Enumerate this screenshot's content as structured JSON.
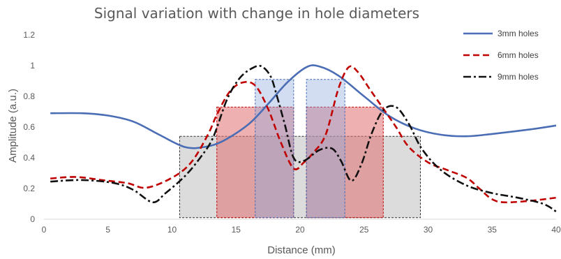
{
  "chart_data": {
    "type": "line",
    "title": "Signal variation with change in hole diameters",
    "xlabel": "Distance (mm)",
    "ylabel": "Amplitude (a.u.)",
    "xlim": [
      0,
      40
    ],
    "ylim": [
      0,
      1.2
    ],
    "x_ticks": [
      0,
      5,
      10,
      15,
      20,
      25,
      30,
      35,
      40
    ],
    "y_ticks": [
      0,
      0.2,
      0.4,
      0.6,
      0.8,
      1,
      1.2
    ],
    "y_tick_labels": [
      "0",
      "0.2",
      "0.4",
      "0.6",
      "0.8",
      "1",
      "1.2"
    ],
    "grid": false,
    "legend_position": "top-right",
    "series": [
      {
        "name": "3mm holes",
        "color": "#4a6db5",
        "style": "solid",
        "points": [
          [
            0.5,
            0.69
          ],
          [
            3,
            0.69
          ],
          [
            5,
            0.675
          ],
          [
            7,
            0.635
          ],
          [
            9,
            0.55
          ],
          [
            11,
            0.47
          ],
          [
            12.5,
            0.47
          ],
          [
            14,
            0.51
          ],
          [
            16,
            0.62
          ],
          [
            17.5,
            0.75
          ],
          [
            19,
            0.89
          ],
          [
            20.5,
            0.99
          ],
          [
            21.5,
            0.995
          ],
          [
            23,
            0.935
          ],
          [
            25,
            0.8
          ],
          [
            27,
            0.67
          ],
          [
            29,
            0.59
          ],
          [
            31,
            0.55
          ],
          [
            33,
            0.54
          ],
          [
            35,
            0.555
          ],
          [
            38,
            0.585
          ],
          [
            40,
            0.61
          ]
        ]
      },
      {
        "name": "6mm holes",
        "color": "#c00000",
        "style": "dashed",
        "points": [
          [
            0.5,
            0.265
          ],
          [
            2.5,
            0.275
          ],
          [
            4.5,
            0.255
          ],
          [
            6.5,
            0.235
          ],
          [
            8,
            0.205
          ],
          [
            10,
            0.27
          ],
          [
            11.5,
            0.37
          ],
          [
            12.8,
            0.55
          ],
          [
            13.5,
            0.68
          ],
          [
            14.5,
            0.83
          ],
          [
            15.5,
            0.89
          ],
          [
            16.5,
            0.87
          ],
          [
            17.5,
            0.72
          ],
          [
            18.5,
            0.5
          ],
          [
            19.5,
            0.33
          ],
          [
            20.3,
            0.37
          ],
          [
            21,
            0.43
          ],
          [
            22,
            0.55
          ],
          [
            23,
            0.85
          ],
          [
            23.8,
            0.99
          ],
          [
            24.5,
            0.96
          ],
          [
            25.5,
            0.84
          ],
          [
            26.5,
            0.72
          ],
          [
            27.5,
            0.6
          ],
          [
            28.5,
            0.47
          ],
          [
            30,
            0.37
          ],
          [
            31.5,
            0.32
          ],
          [
            33,
            0.27
          ],
          [
            34,
            0.2
          ],
          [
            35,
            0.13
          ],
          [
            36,
            0.11
          ],
          [
            38,
            0.12
          ],
          [
            40,
            0.14
          ]
        ]
      },
      {
        "name": "9mm holes",
        "color": "#111111",
        "style": "dashdot",
        "points": [
          [
            0.5,
            0.245
          ],
          [
            3,
            0.255
          ],
          [
            5.5,
            0.235
          ],
          [
            7,
            0.19
          ],
          [
            8.5,
            0.11
          ],
          [
            9.5,
            0.17
          ],
          [
            11,
            0.28
          ],
          [
            12.2,
            0.4
          ],
          [
            13.2,
            0.53
          ],
          [
            14.3,
            0.78
          ],
          [
            15.3,
            0.92
          ],
          [
            16.3,
            0.985
          ],
          [
            17,
            0.995
          ],
          [
            17.7,
            0.93
          ],
          [
            18.2,
            0.8
          ],
          [
            18.8,
            0.62
          ],
          [
            19.5,
            0.4
          ],
          [
            20.3,
            0.38
          ],
          [
            21.5,
            0.45
          ],
          [
            22.5,
            0.46
          ],
          [
            23.2,
            0.38
          ],
          [
            24,
            0.25
          ],
          [
            24.8,
            0.36
          ],
          [
            25.6,
            0.56
          ],
          [
            26.5,
            0.71
          ],
          [
            27.5,
            0.73
          ],
          [
            28.5,
            0.62
          ],
          [
            29.5,
            0.46
          ],
          [
            31,
            0.32
          ],
          [
            33,
            0.22
          ],
          [
            35,
            0.17
          ],
          [
            37,
            0.14
          ],
          [
            39,
            0.1
          ],
          [
            40,
            0.05
          ]
        ]
      }
    ],
    "shaded_regions": [
      {
        "x": [
          10.6,
          29.4
        ],
        "y": [
          0.01,
          0.54
        ],
        "fill": "#bfbfbf",
        "stroke": "#303030",
        "opacity": 0.55
      },
      {
        "x": [
          13.5,
          19.5
        ],
        "y": [
          0.01,
          0.73
        ],
        "fill": "#e07070",
        "stroke": "#c00000",
        "opacity": 0.55
      },
      {
        "x": [
          20.5,
          26.5
        ],
        "y": [
          0.01,
          0.73
        ],
        "fill": "#e07070",
        "stroke": "#c00000",
        "opacity": 0.55
      },
      {
        "x": [
          16.5,
          19.5
        ],
        "y": [
          0.01,
          0.91
        ],
        "fill": "#8fa9df",
        "stroke": "#4a6db5",
        "opacity": 0.4
      },
      {
        "x": [
          20.5,
          23.5
        ],
        "y": [
          0.01,
          0.91
        ],
        "fill": "#8fa9df",
        "stroke": "#4a6db5",
        "opacity": 0.4
      }
    ]
  }
}
